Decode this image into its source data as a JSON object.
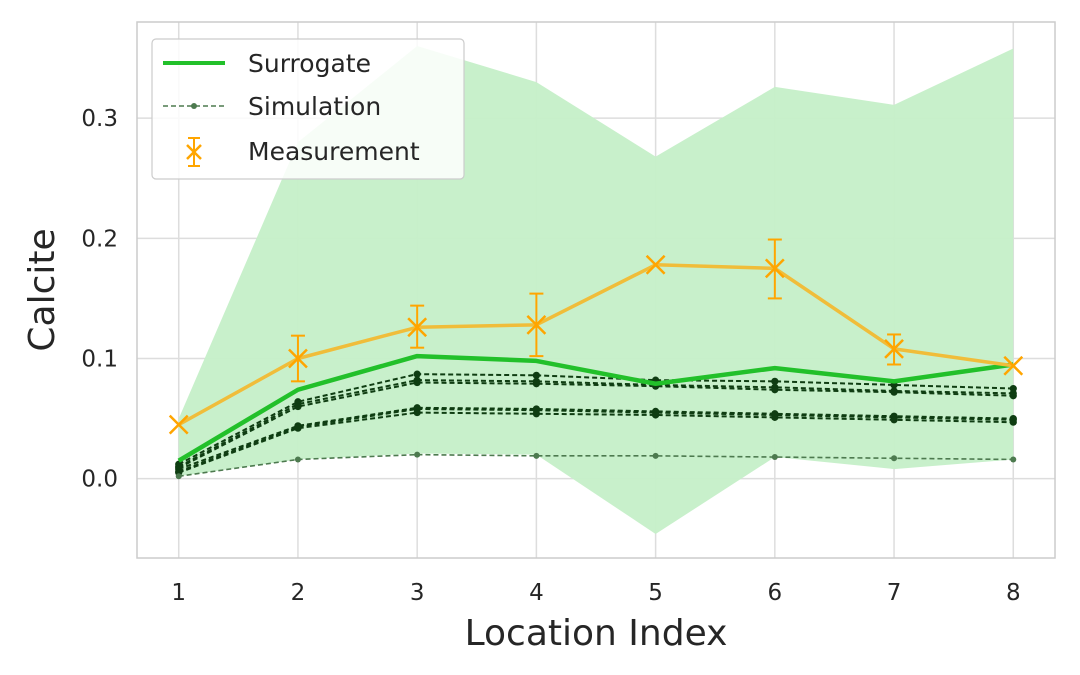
{
  "chart_data": {
    "type": "line",
    "xlabel": "Location Index",
    "ylabel": "Calcite",
    "x": [
      1,
      2,
      3,
      4,
      5,
      6,
      7,
      8
    ],
    "xlim": [
      0.65,
      8.35
    ],
    "ylim": [
      -0.066,
      0.38
    ],
    "xticks": [
      1,
      2,
      3,
      4,
      5,
      6,
      7,
      8
    ],
    "yticks": [
      0.0,
      0.1,
      0.2,
      0.3
    ],
    "ytick_labels": [
      "0.0",
      "0.1",
      "0.2",
      "0.3"
    ],
    "grid": true,
    "legend_position": "top-left",
    "legend": [
      {
        "label": "Surrogate",
        "style": "solid-line"
      },
      {
        "label": "Simulation",
        "style": "dashed-marker-line"
      },
      {
        "label": "Measurement",
        "style": "errorbar-x-marker"
      }
    ],
    "colors": {
      "surrogate": "#22c02a",
      "band": "#c5efc8",
      "simulation": "#0f3d12",
      "simulation_light": "#4d7a4f",
      "measurement_line": "#f0bd3a",
      "measurement_marker": "#ffa500"
    },
    "surrogate": {
      "name": "Surrogate",
      "values": [
        0.015,
        0.074,
        0.102,
        0.098,
        0.079,
        0.092,
        0.081,
        0.095
      ],
      "band_upper": [
        0.05,
        0.28,
        0.36,
        0.33,
        0.268,
        0.326,
        0.311,
        0.358
      ],
      "band_lower": [
        0.002,
        0.016,
        0.021,
        0.02,
        -0.046,
        0.018,
        0.008,
        0.016
      ]
    },
    "simulation": {
      "name": "Simulation",
      "runs": [
        [
          0.012,
          0.064,
          0.087,
          0.086,
          0.082,
          0.081,
          0.078,
          0.075
        ],
        [
          0.01,
          0.062,
          0.082,
          0.081,
          0.078,
          0.076,
          0.073,
          0.071
        ],
        [
          0.009,
          0.06,
          0.08,
          0.079,
          0.077,
          0.074,
          0.072,
          0.069
        ],
        [
          0.008,
          0.044,
          0.059,
          0.058,
          0.056,
          0.054,
          0.052,
          0.05
        ],
        [
          0.006,
          0.043,
          0.058,
          0.057,
          0.055,
          0.053,
          0.051,
          0.049
        ],
        [
          0.005,
          0.042,
          0.055,
          0.054,
          0.053,
          0.051,
          0.049,
          0.047
        ],
        [
          0.002,
          0.016,
          0.02,
          0.019,
          0.019,
          0.018,
          0.017,
          0.016
        ]
      ]
    },
    "measurement": {
      "name": "Measurement",
      "values": [
        0.045,
        0.1,
        0.126,
        0.128,
        0.178,
        0.175,
        0.108,
        0.094
      ],
      "err_low": [
        0.0,
        0.019,
        0.017,
        0.026,
        0.0,
        0.025,
        0.013,
        0.0
      ],
      "err_high": [
        0.0,
        0.019,
        0.018,
        0.026,
        0.0,
        0.024,
        0.012,
        0.0
      ]
    }
  }
}
